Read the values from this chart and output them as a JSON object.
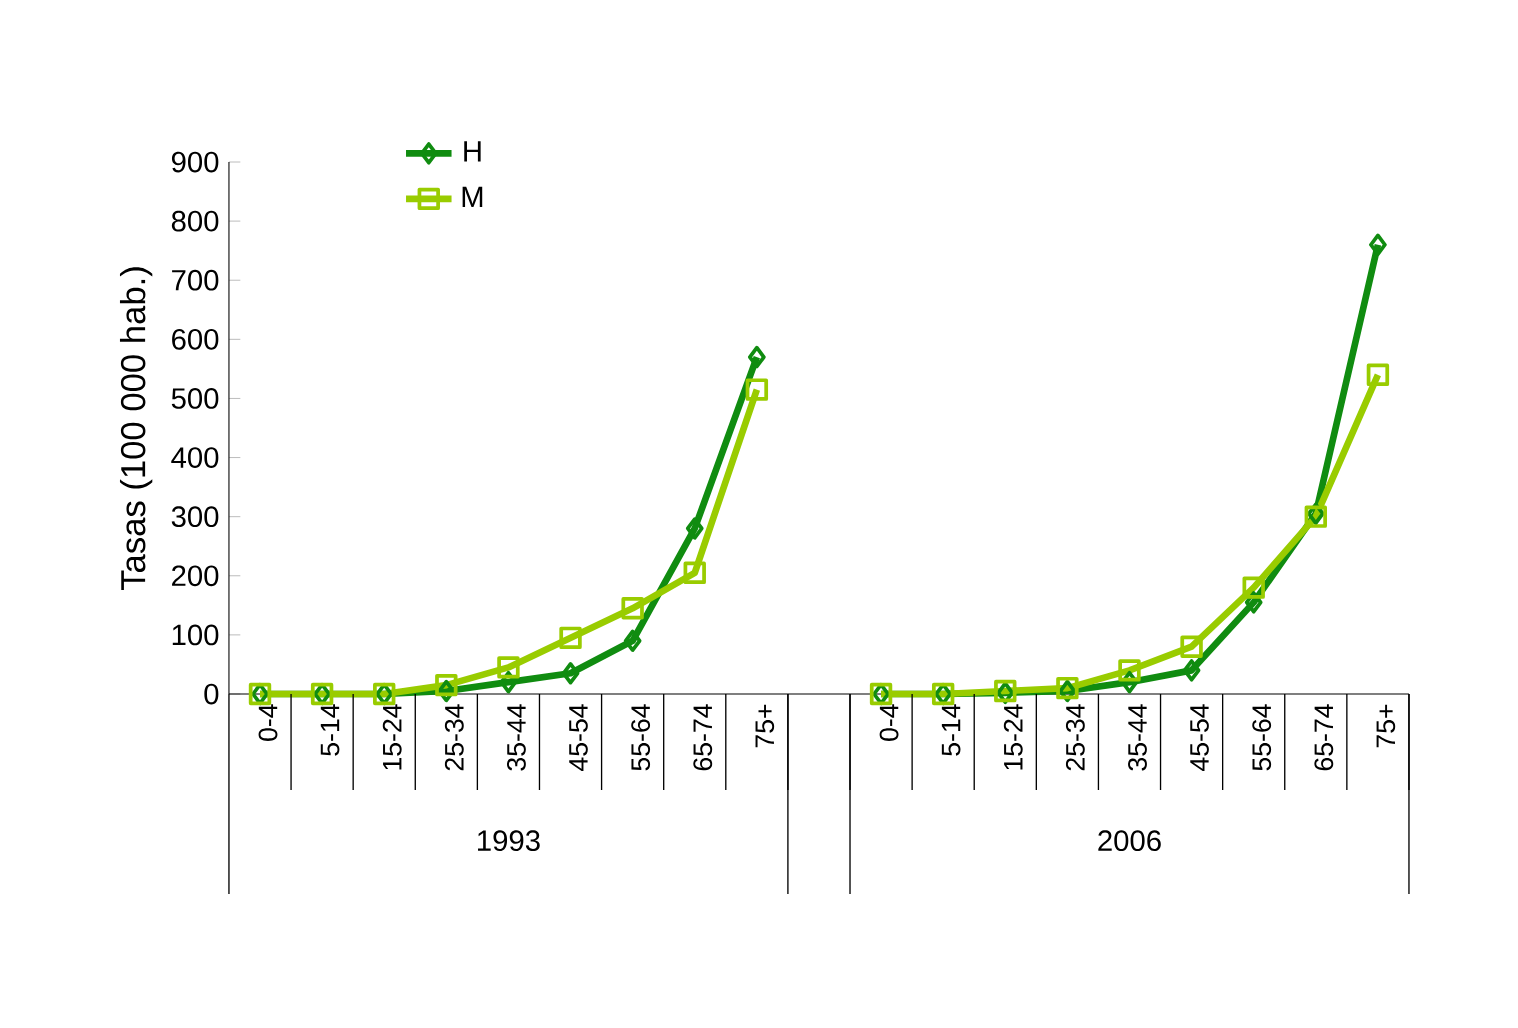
{
  "chart_data": {
    "type": "line",
    "ylabel": "Tasas (100 000 hab.)",
    "categories": [
      "0-4",
      "5-14",
      "15-24",
      "25-34",
      "35-44",
      "45-54",
      "55-64",
      "65-74",
      "75+",
      null,
      "0-4",
      "5-14",
      "15-24",
      "25-34",
      "35-44",
      "45-54",
      "55-64",
      "65-74",
      "75+"
    ],
    "series": [
      {
        "name": "H",
        "color": "#108c10",
        "marker": "diamond",
        "values": [
          0,
          0,
          0,
          5,
          20,
          35,
          90,
          280,
          570,
          null,
          0,
          0,
          2,
          5,
          20,
          40,
          155,
          305,
          760
        ]
      },
      {
        "name": "M",
        "color": "#99cc00",
        "marker": "square",
        "values": [
          0,
          0,
          0,
          15,
          45,
          95,
          145,
          205,
          515,
          null,
          0,
          0,
          5,
          10,
          40,
          80,
          180,
          300,
          540
        ]
      }
    ],
    "ylim": [
      0,
      900
    ],
    "yticks": [
      0,
      100,
      200,
      300,
      400,
      500,
      600,
      700,
      800,
      900
    ],
    "annotations": [
      "1993",
      "2006"
    ],
    "legend": "top left",
    "grid": false
  }
}
